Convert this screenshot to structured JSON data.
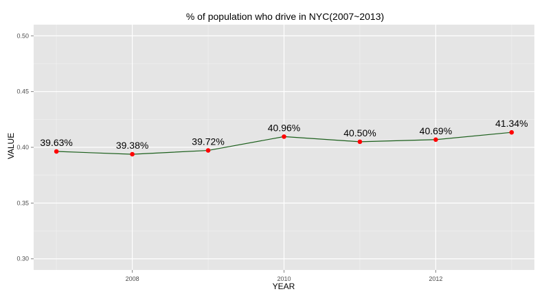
{
  "chart_data": {
    "type": "line",
    "title": "% of population who drive in NYC(2007~2013)",
    "xlabel": "YEAR",
    "ylabel": "VALUE",
    "x": [
      2007,
      2008,
      2009,
      2010,
      2011,
      2012,
      2013
    ],
    "series": [
      {
        "values": [
          0.3963,
          0.3938,
          0.3972,
          0.4096,
          0.405,
          0.4069,
          0.4134
        ],
        "labels": [
          "39.63%",
          "39.38%",
          "39.72%",
          "40.96%",
          "40.50%",
          "40.69%",
          "41.34%"
        ]
      }
    ],
    "xlim": [
      2006.7,
      2013.3
    ],
    "ylim": [
      0.29,
      0.51
    ],
    "x_ticks": [
      2008,
      2010,
      2012
    ],
    "y_ticks": [
      0.3,
      0.35,
      0.4,
      0.45,
      0.5
    ],
    "x_tick_labels": [
      "2008",
      "2010",
      "2012"
    ],
    "y_tick_labels": [
      "0.30",
      "0.35",
      "0.40",
      "0.45",
      "0.50"
    ],
    "grid": true,
    "legend": "none",
    "colors": {
      "panel_background": "#e5e5e5",
      "grid_major": "#ffffff",
      "grid_minor": "#f2f2f2",
      "line": "#1a5e1a",
      "point": "#ff0000"
    }
  }
}
